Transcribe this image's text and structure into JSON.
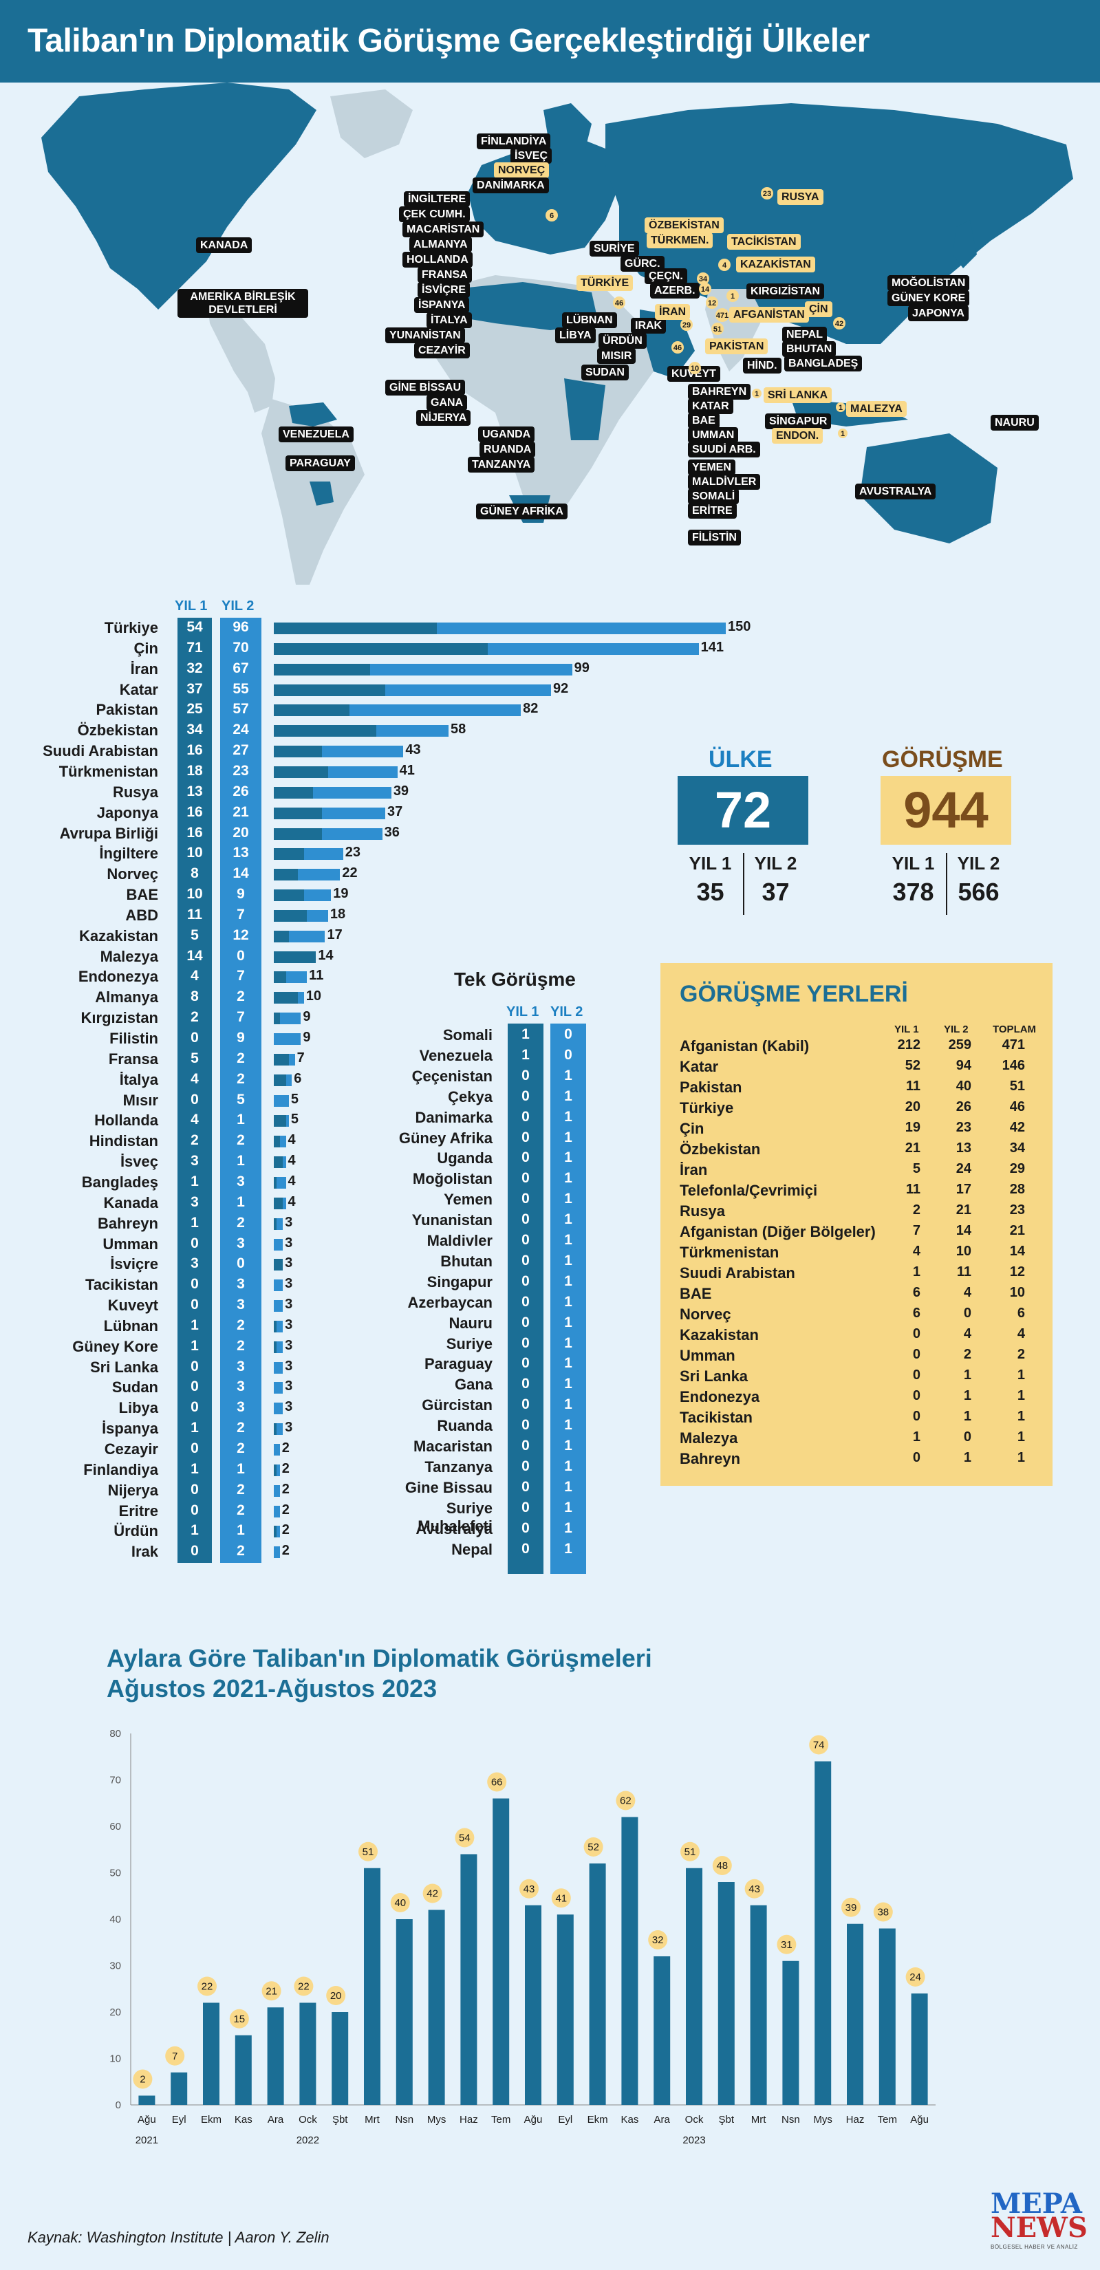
{
  "title": "Taliban'ın Diplomatik Görüşme Gerçekleştirdiği Ülkeler",
  "map": {
    "labels_dark": [
      "FİNLANDİYA",
      "İSVEÇ",
      "DANİMARKA",
      "İNGİLTERE",
      "ÇEK CUMH.",
      "MACARİSTAN",
      "ALMANYA",
      "HOLLANDA",
      "FRANSA",
      "İSVİÇRE",
      "İSPANYA",
      "İTALYA",
      "YUNANİSTAN",
      "CEZAYİR",
      "KANADA",
      "AMERİKA BİRLEŞİK DEVLETLERİ",
      "GİNE BİSSAU",
      "GANA",
      "NİJERYA",
      "VENEZUELA",
      "PARAGUAY",
      "UGANDA",
      "RUANDA",
      "TANZANYA",
      "GÜNEY AFRİKA",
      "SURİYE",
      "GÜRC.",
      "ÇEÇN.",
      "AZERB.",
      "LÜBNAN",
      "LİBYA",
      "IRAK",
      "ÜRDÜN",
      "MISIR",
      "SUDAN",
      "KUVEYT",
      "BAHREYN",
      "KATAR",
      "BAE",
      "UMMAN",
      "SUUDİ ARB.",
      "YEMEN",
      "MALDİVLER",
      "SOMALİ",
      "ERİTRE",
      "FİLİSTİN",
      "KIRGIZİSTAN",
      "MOĞOLİSTAN",
      "GÜNEY KORE",
      "JAPONYA",
      "NEPAL",
      "BHUTAN",
      "BANGLADEŞ",
      "HİND.",
      "SİNGAPUR",
      "NAURU",
      "AVUSTRALYA"
    ],
    "labels_yellow": [
      "NORVEÇ",
      "RUSYA",
      "ÖZBEKİSTAN",
      "TÜRKMEN.",
      "TACİKİSTAN",
      "KAZAKİSTAN",
      "TÜRKİYE",
      "İRAN",
      "AFGANİSTAN",
      "ÇİN",
      "PAKİSTAN",
      "SRİ LANKA",
      "MALEZYA",
      "ENDON."
    ],
    "markers": [
      "23",
      "6",
      "4",
      "46",
      "14",
      "12",
      "1",
      "42",
      "471",
      "46",
      "51",
      "29",
      "34",
      "10",
      "1",
      "1",
      "1"
    ]
  },
  "bars": {
    "header_y1": "YIL 1",
    "header_y2": "YIL 2",
    "rows": [
      {
        "name": "Türkiye",
        "y1": 54,
        "y2": 96,
        "total": 150
      },
      {
        "name": "Çin",
        "y1": 71,
        "y2": 70,
        "total": 141
      },
      {
        "name": "İran",
        "y1": 32,
        "y2": 67,
        "total": 99
      },
      {
        "name": "Katar",
        "y1": 37,
        "y2": 55,
        "total": 92
      },
      {
        "name": "Pakistan",
        "y1": 25,
        "y2": 57,
        "total": 82
      },
      {
        "name": "Özbekistan",
        "y1": 34,
        "y2": 24,
        "total": 58
      },
      {
        "name": "Suudi Arabistan",
        "y1": 16,
        "y2": 27,
        "total": 43
      },
      {
        "name": "Türkmenistan",
        "y1": 18,
        "y2": 23,
        "total": 41
      },
      {
        "name": "Rusya",
        "y1": 13,
        "y2": 26,
        "total": 39
      },
      {
        "name": "Japonya",
        "y1": 16,
        "y2": 21,
        "total": 37
      },
      {
        "name": "Avrupa Birliği",
        "y1": 16,
        "y2": 20,
        "total": 36
      },
      {
        "name": "İngiltere",
        "y1": 10,
        "y2": 13,
        "total": 23
      },
      {
        "name": "Norveç",
        "y1": 8,
        "y2": 14,
        "total": 22
      },
      {
        "name": "BAE",
        "y1": 10,
        "y2": 9,
        "total": 19
      },
      {
        "name": "ABD",
        "y1": 11,
        "y2": 7,
        "total": 18
      },
      {
        "name": "Kazakistan",
        "y1": 5,
        "y2": 12,
        "total": 17
      },
      {
        "name": "Malezya",
        "y1": 14,
        "y2": 0,
        "total": 14
      },
      {
        "name": "Endonezya",
        "y1": 4,
        "y2": 7,
        "total": 11
      },
      {
        "name": "Almanya",
        "y1": 8,
        "y2": 2,
        "total": 10
      },
      {
        "name": "Kırgızistan",
        "y1": 2,
        "y2": 7,
        "total": 9
      },
      {
        "name": "Filistin",
        "y1": 0,
        "y2": 9,
        "total": 9
      },
      {
        "name": "Fransa",
        "y1": 5,
        "y2": 2,
        "total": 7
      },
      {
        "name": "İtalya",
        "y1": 4,
        "y2": 2,
        "total": 6
      },
      {
        "name": "Mısır",
        "y1": 0,
        "y2": 5,
        "total": 5
      },
      {
        "name": "Hollanda",
        "y1": 4,
        "y2": 1,
        "total": 5
      },
      {
        "name": "Hindistan",
        "y1": 2,
        "y2": 2,
        "total": 4
      },
      {
        "name": "İsveç",
        "y1": 3,
        "y2": 1,
        "total": 4
      },
      {
        "name": "Bangladeş",
        "y1": 1,
        "y2": 3,
        "total": 4
      },
      {
        "name": "Kanada",
        "y1": 3,
        "y2": 1,
        "total": 4
      },
      {
        "name": "Bahreyn",
        "y1": 1,
        "y2": 2,
        "total": 3
      },
      {
        "name": "Umman",
        "y1": 0,
        "y2": 3,
        "total": 3
      },
      {
        "name": "İsviçre",
        "y1": 3,
        "y2": 0,
        "total": 3
      },
      {
        "name": "Tacikistan",
        "y1": 0,
        "y2": 3,
        "total": 3
      },
      {
        "name": "Kuveyt",
        "y1": 0,
        "y2": 3,
        "total": 3
      },
      {
        "name": "Lübnan",
        "y1": 1,
        "y2": 2,
        "total": 3
      },
      {
        "name": "Güney Kore",
        "y1": 1,
        "y2": 2,
        "total": 3
      },
      {
        "name": "Sri Lanka",
        "y1": 0,
        "y2": 3,
        "total": 3
      },
      {
        "name": "Sudan",
        "y1": 0,
        "y2": 3,
        "total": 3
      },
      {
        "name": "Libya",
        "y1": 0,
        "y2": 3,
        "total": 3
      },
      {
        "name": "İspanya",
        "y1": 1,
        "y2": 2,
        "total": 3
      },
      {
        "name": "Cezayir",
        "y1": 0,
        "y2": 2,
        "total": 2
      },
      {
        "name": "Finlandiya",
        "y1": 1,
        "y2": 1,
        "total": 2
      },
      {
        "name": "Nijerya",
        "y1": 0,
        "y2": 2,
        "total": 2
      },
      {
        "name": "Eritre",
        "y1": 0,
        "y2": 2,
        "total": 2
      },
      {
        "name": "Ürdün",
        "y1": 1,
        "y2": 1,
        "total": 2
      },
      {
        "name": "Irak",
        "y1": 0,
        "y2": 2,
        "total": 2
      }
    ]
  },
  "tek": {
    "title": "Tek Görüşme",
    "header_y1": "YIL 1",
    "header_y2": "YIL 2",
    "rows": [
      {
        "name": "Somali",
        "y1": 1,
        "y2": 0
      },
      {
        "name": "Venezuela",
        "y1": 1,
        "y2": 0
      },
      {
        "name": "Çeçenistan",
        "y1": 0,
        "y2": 1
      },
      {
        "name": "Çekya",
        "y1": 0,
        "y2": 1
      },
      {
        "name": "Danimarka",
        "y1": 0,
        "y2": 1
      },
      {
        "name": "Güney Afrika",
        "y1": 0,
        "y2": 1
      },
      {
        "name": "Uganda",
        "y1": 0,
        "y2": 1
      },
      {
        "name": "Moğolistan",
        "y1": 0,
        "y2": 1
      },
      {
        "name": "Yemen",
        "y1": 0,
        "y2": 1
      },
      {
        "name": "Yunanistan",
        "y1": 0,
        "y2": 1
      },
      {
        "name": "Maldivler",
        "y1": 0,
        "y2": 1
      },
      {
        "name": "Bhutan",
        "y1": 0,
        "y2": 1
      },
      {
        "name": "Singapur",
        "y1": 0,
        "y2": 1
      },
      {
        "name": "Azerbaycan",
        "y1": 0,
        "y2": 1
      },
      {
        "name": "Nauru",
        "y1": 0,
        "y2": 1
      },
      {
        "name": "Suriye",
        "y1": 0,
        "y2": 1
      },
      {
        "name": "Paraguay",
        "y1": 0,
        "y2": 1
      },
      {
        "name": "Gana",
        "y1": 0,
        "y2": 1
      },
      {
        "name": "Gürcistan",
        "y1": 0,
        "y2": 1
      },
      {
        "name": "Ruanda",
        "y1": 0,
        "y2": 1
      },
      {
        "name": "Macaristan",
        "y1": 0,
        "y2": 1
      },
      {
        "name": "Tanzanya",
        "y1": 0,
        "y2": 1
      },
      {
        "name": "Gine Bissau",
        "y1": 0,
        "y2": 1
      },
      {
        "name": "Suriye Muhalefeti",
        "y1": 0,
        "y2": 1
      },
      {
        "name": "Avustralya",
        "y1": 0,
        "y2": 1
      },
      {
        "name": "Nepal",
        "y1": 0,
        "y2": 1
      }
    ]
  },
  "kpi": {
    "ulke_title": "ÜLKE",
    "ulke_value": "72",
    "ulke_y1_label": "YIL 1",
    "ulke_y2_label": "YIL 2",
    "ulke_y1": "35",
    "ulke_y2": "37",
    "gorusme_title": "GÖRÜŞME",
    "gorusme_value": "944",
    "gorusme_y1_label": "YIL 1",
    "gorusme_y2_label": "YIL 2",
    "gorusme_y1": "378",
    "gorusme_y2": "566"
  },
  "venues": {
    "title": "GÖRÜŞME YERLERİ",
    "h_y1": "YIL 1",
    "h_y2": "YIL 2",
    "h_total": "TOPLAM",
    "rows": [
      {
        "name": "Afganistan (Kabil)",
        "y1": "212",
        "y2": "259",
        "total": "471"
      },
      {
        "name": "Katar",
        "y1": "52",
        "y2": "94",
        "total": "146"
      },
      {
        "name": "Pakistan",
        "y1": "11",
        "y2": "40",
        "total": "51"
      },
      {
        "name": "Türkiye",
        "y1": "20",
        "y2": "26",
        "total": "46"
      },
      {
        "name": "Çin",
        "y1": "19",
        "y2": "23",
        "total": "42"
      },
      {
        "name": "Özbekistan",
        "y1": "21",
        "y2": "13",
        "total": "34"
      },
      {
        "name": "İran",
        "y1": "5",
        "y2": "24",
        "total": "29"
      },
      {
        "name": "Telefonla/Çevrimiçi",
        "y1": "11",
        "y2": "17",
        "total": "28"
      },
      {
        "name": "Rusya",
        "y1": "2",
        "y2": "21",
        "total": "23"
      },
      {
        "name": "Afganistan (Diğer Bölgeler)",
        "y1": "7",
        "y2": "14",
        "total": "21"
      },
      {
        "name": "Türkmenistan",
        "y1": "4",
        "y2": "10",
        "total": "14"
      },
      {
        "name": "Suudi Arabistan",
        "y1": "1",
        "y2": "11",
        "total": "12"
      },
      {
        "name": "BAE",
        "y1": "6",
        "y2": "4",
        "total": "10"
      },
      {
        "name": "Norveç",
        "y1": "6",
        "y2": "0",
        "total": "6"
      },
      {
        "name": "Kazakistan",
        "y1": "0",
        "y2": "4",
        "total": "4"
      },
      {
        "name": "Umman",
        "y1": "0",
        "y2": "2",
        "total": "2"
      },
      {
        "name": "Sri Lanka",
        "y1": "0",
        "y2": "1",
        "total": "1"
      },
      {
        "name": "Endonezya",
        "y1": "0",
        "y2": "1",
        "total": "1"
      },
      {
        "name": "Tacikistan",
        "y1": "0",
        "y2": "1",
        "total": "1"
      },
      {
        "name": "Malezya",
        "y1": "1",
        "y2": "0",
        "total": "1"
      },
      {
        "name": "Bahreyn",
        "y1": "0",
        "y2": "1",
        "total": "1"
      }
    ]
  },
  "chart_data": {
    "type": "bar",
    "title": "Aylara Göre Taliban'ın Diplomatik Görüşmeleri",
    "subtitle": "Ağustos 2021-Ağustos 2023",
    "categories": [
      "Ağu",
      "Eyl",
      "Ekm",
      "Kas",
      "Ara",
      "Ock",
      "Şbt",
      "Mrt",
      "Nsn",
      "Mys",
      "Haz",
      "Tem",
      "Ağu",
      "Eyl",
      "Ekm",
      "Kas",
      "Ara",
      "Ock",
      "Şbt",
      "Mrt",
      "Nsn",
      "Mys",
      "Haz",
      "Tem",
      "Ağu"
    ],
    "values": [
      2,
      7,
      22,
      15,
      21,
      22,
      20,
      51,
      40,
      42,
      54,
      66,
      43,
      41,
      52,
      62,
      32,
      51,
      48,
      43,
      31,
      74,
      39,
      38,
      24
    ],
    "year_labels": [
      {
        "index": 0,
        "label": "2021"
      },
      {
        "index": 5,
        "label": "2022"
      },
      {
        "index": 17,
        "label": "2023"
      }
    ],
    "yticks": [
      0,
      10,
      20,
      30,
      40,
      50,
      60,
      70,
      80
    ],
    "ylim": [
      0,
      80
    ]
  },
  "source": "Kaynak: Washington Institute | Aaron Y. Zelin",
  "logo": {
    "line1": "MEPA",
    "line2": "NEWS",
    "tagline": "BÖLGESEL HABER VE ANALİZ"
  },
  "colors": {
    "dark": "#1b6e95",
    "light": "#2f8fd1",
    "yellow": "#f7d886",
    "kpi_brown": "#7a4d1c"
  }
}
